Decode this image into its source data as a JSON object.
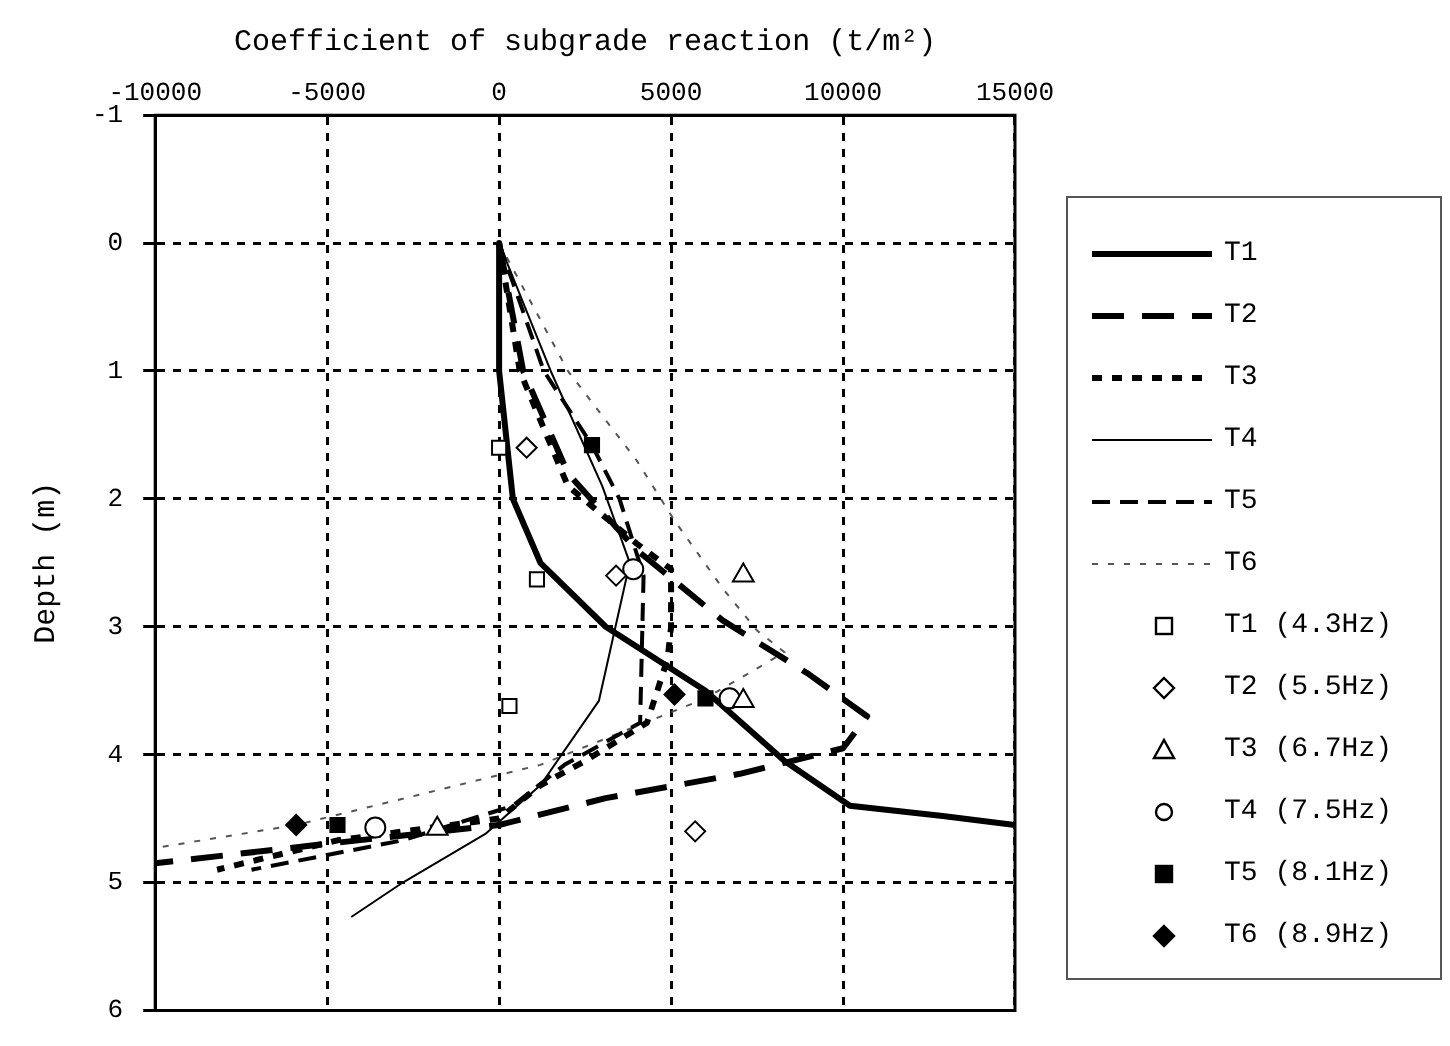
{
  "chart_data": {
    "type": "line",
    "xlabel": "Coefficient of subgrade reaction (t/m²)",
    "ylabel": "Depth (m)",
    "xlim": [
      -10000,
      15000
    ],
    "xticks": [
      -10000,
      -5000,
      0,
      5000,
      10000,
      15000
    ],
    "ylim": [
      6,
      -1
    ],
    "yticks": [
      -1,
      0,
      1,
      2,
      3,
      4,
      5,
      6
    ],
    "grid": true,
    "legend": "right",
    "series": [
      {
        "name": "T1",
        "line_style": "solid",
        "color": "#000000",
        "x": [
          0,
          0,
          400,
          1200,
          3100,
          6000,
          8300,
          10200,
          12900,
          15000
        ],
        "values": [
          0,
          1,
          2,
          2.5,
          3,
          3.5,
          4.05,
          4.4,
          4.48,
          4.55
        ]
      },
      {
        "name": "T2",
        "line_style": "dashed",
        "color": "#000000",
        "x": [
          0,
          700,
          2000,
          4000,
          6500,
          9000,
          10700,
          10000,
          7000,
          3100,
          0,
          -5100,
          -10000
        ],
        "values": [
          0,
          1,
          1.8,
          2.4,
          2.95,
          3.37,
          3.7,
          3.95,
          4.15,
          4.34,
          4.55,
          4.7,
          4.85
        ]
      },
      {
        "name": "T3",
        "line_style": "dotted",
        "color": "#000000",
        "x": [
          0,
          600,
          2000,
          4000,
          5000,
          5000,
          4900,
          4300,
          2500,
          1200,
          0,
          -4700,
          -8200
        ],
        "values": [
          0,
          1,
          1.9,
          2.35,
          2.55,
          3,
          3.25,
          3.75,
          4.05,
          4.24,
          4.5,
          4.67,
          4.9
        ]
      },
      {
        "name": "T4",
        "line_style": "solid",
        "color": "#000000",
        "x": [
          0,
          1500,
          3000,
          3800,
          2900,
          1200,
          -400,
          -2800,
          -4300
        ],
        "values": [
          0,
          1,
          1.9,
          2.5,
          3.58,
          4.24,
          4.62,
          5,
          5.27
        ]
      },
      {
        "name": "T5",
        "line_style": "dashed",
        "color": "#000000",
        "x": [
          0,
          1300,
          2700,
          3500,
          4200,
          4100,
          1900,
          400,
          -2800,
          -7200
        ],
        "values": [
          0,
          1,
          1.58,
          2,
          2.6,
          3.75,
          4.08,
          4.4,
          4.67,
          4.9
        ]
      },
      {
        "name": "T6",
        "line_style": "dotted",
        "color": "#555555",
        "x": [
          0,
          2000,
          4000,
          5100,
          6500,
          7500,
          8300,
          6000,
          1200,
          -5900,
          -10000
        ],
        "values": [
          0,
          1,
          1.7,
          2.17,
          2.7,
          3.03,
          3.2,
          3.56,
          4.08,
          4.55,
          4.73
        ]
      },
      {
        "name": "T1 (4.3Hz)",
        "type": "scatter",
        "marker": "square",
        "color": "#000000",
        "x": [
          0,
          1100,
          300
        ],
        "values": [
          1.6,
          2.63,
          3.62
        ]
      },
      {
        "name": "T2 (5.5Hz)",
        "type": "scatter",
        "marker": "diamond",
        "color": "#000000",
        "x": [
          800,
          3400,
          5700
        ],
        "values": [
          1.6,
          2.6,
          4.6
        ]
      },
      {
        "name": "T3 (6.7Hz)",
        "type": "scatter",
        "marker": "triangle",
        "color": "#000000",
        "x": [
          7100,
          7100,
          -1800
        ],
        "values": [
          2.6,
          3.58,
          4.58
        ]
      },
      {
        "name": "T4 (7.5Hz)",
        "type": "scatter",
        "marker": "circle",
        "color": "#000000",
        "x": [
          3900,
          6700,
          -3600
        ],
        "values": [
          2.55,
          3.56,
          4.57
        ]
      },
      {
        "name": "T5 (8.1Hz)",
        "type": "scatter",
        "marker": "square",
        "color": "#000000",
        "x": [
          2700,
          6000,
          -4700
        ],
        "values": [
          1.58,
          3.56,
          4.55
        ]
      },
      {
        "name": "T6 (8.9Hz)",
        "type": "scatter",
        "marker": "diamond",
        "color": "#000000",
        "x": [
          5100,
          -5900
        ],
        "values": [
          3.53,
          4.55
        ]
      }
    ]
  }
}
